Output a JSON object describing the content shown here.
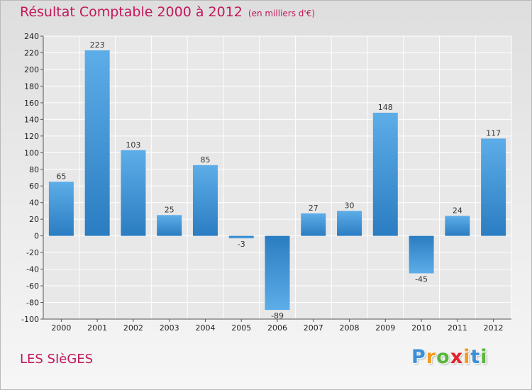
{
  "header": {
    "title": "Résultat Comptable 2000 à 2012",
    "subtitle": "(en milliers d'€)"
  },
  "footer": {
    "place": "LES SIèGES",
    "logo": [
      "P",
      "r",
      "o",
      "x",
      "i",
      "t",
      "i"
    ],
    "logo_colors": [
      "#3b8fd9",
      "#f39a1e",
      "#56b83a",
      "#e2232a",
      "#f39a1e",
      "#3b8fd9",
      "#56b83a"
    ]
  },
  "colors": {
    "bar_top": "#5dade8",
    "bar_bottom": "#2a7dc1",
    "title": "#c2185b"
  },
  "chart_data": {
    "type": "bar",
    "title": "Résultat Comptable 2000 à 2012",
    "subtitle": "(en milliers d'€)",
    "categories": [
      "2000",
      "2001",
      "2002",
      "2003",
      "2004",
      "2005",
      "2006",
      "2007",
      "2008",
      "2009",
      "2010",
      "2011",
      "2012"
    ],
    "values": [
      65,
      223,
      103,
      25,
      85,
      -3,
      -89,
      27,
      30,
      148,
      -45,
      24,
      117
    ],
    "ylim": [
      -100,
      240
    ],
    "yticks": [
      240,
      220,
      200,
      180,
      160,
      140,
      120,
      100,
      80,
      60,
      40,
      20,
      0,
      -20,
      -40,
      -60,
      -80,
      -100
    ],
    "xlabel": "",
    "ylabel": "",
    "grid": true
  }
}
